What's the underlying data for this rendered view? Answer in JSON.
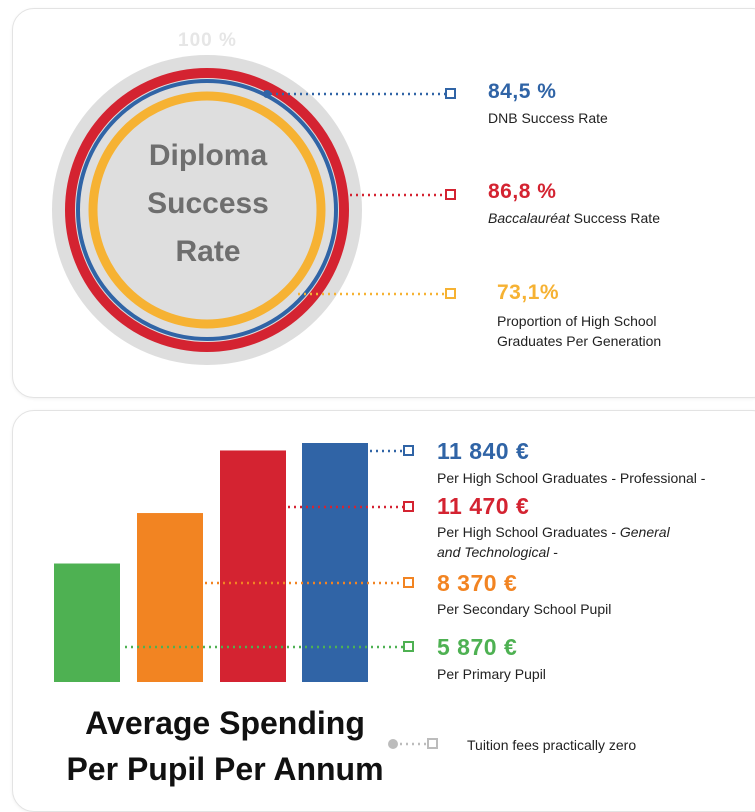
{
  "colors": {
    "blue": "#3064a6",
    "red": "#d42331",
    "yellow": "#f6b233",
    "orange": "#f28422",
    "green": "#4eb152",
    "grey_disc": "#dedede",
    "grey_dot": "#bcbcbc"
  },
  "chart_data": [
    {
      "type": "pie",
      "title": "Diploma Success Rate",
      "max_label": "100 %",
      "series": [
        {
          "name": "DNB Success Rate",
          "value_label": "84,5 %",
          "value": 84.5,
          "color": "#3064a6"
        },
        {
          "name": "Baccalauréat Success Rate",
          "name_italic": "Baccalauréat",
          "name_rest": " Success Rate",
          "value_label": "86,8 %",
          "value": 86.8,
          "color": "#d42331"
        },
        {
          "name": "Proportion of High School Graduates Per Generation",
          "line1": "Proportion of High School",
          "line2": "Graduates Per Generation",
          "value_label": "73,1%",
          "value": 73.1,
          "color": "#f6b233"
        }
      ]
    },
    {
      "type": "bar",
      "title_line1": "Average Spending",
      "title_line2": "Per Pupil Per Annum",
      "unit": "€",
      "ylim": [
        0,
        12000
      ],
      "series": [
        {
          "name": "Per Primary Pupil",
          "value": 5870,
          "value_label": "5 870 €",
          "color": "#4eb152"
        },
        {
          "name": "Per Secondary School Pupil",
          "value": 8370,
          "value_label": "8 370 €",
          "color": "#f28422"
        },
        {
          "name": "Per High School Graduates - General and Technological -",
          "line1_plain": "Per High School Graduates - ",
          "line1_italic": "General",
          "line2_italic": "and Technological",
          "line2_plain": " -",
          "value": 11470,
          "value_label": "11 470 €",
          "color": "#d42331"
        },
        {
          "name": "Per High School Graduates - Professional -",
          "value": 11840,
          "value_label": "11 840 €",
          "color": "#3064a6"
        }
      ],
      "note": "Tuition fees practically zero"
    }
  ]
}
